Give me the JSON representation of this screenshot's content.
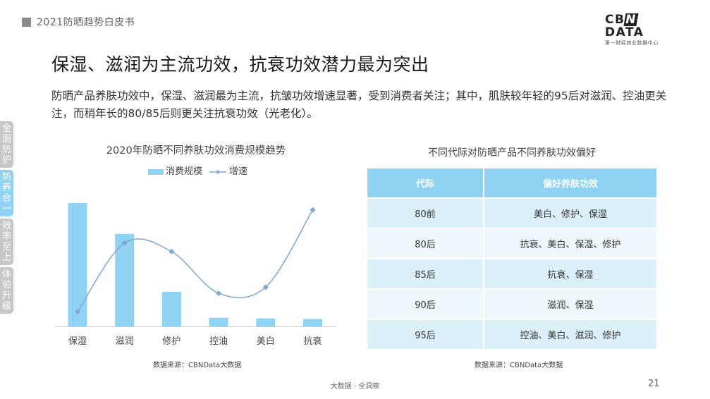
{
  "header": {
    "title": "2021防晒趋势白皮书"
  },
  "logo": {
    "main_left": "CB",
    "main_n": "N",
    "main_right": "DATA",
    "sub": "第一财经商业数据中心"
  },
  "heading": "保湿、滋润为主流功效，抗衰功效潜力最为突出",
  "intro": "防晒产品养肤功效中，保湿、滋润最为主流，抗皱功效增速显著，受到消费者关注；其中，肌肤较年轻的95后对滋润、控油更关注，而稍年长的80/85后则更关注抗衰功效（光老化）。",
  "side_tabs": [
    {
      "label": "全面防护",
      "active": false
    },
    {
      "label": "防养合一",
      "active": true
    },
    {
      "label": "效率至上",
      "active": false
    },
    {
      "label": "体验升级",
      "active": false
    }
  ],
  "chart_data": {
    "type": "bar",
    "title": "2020年防晒不同养肤功效消费规模趋势",
    "categories": [
      "保湿",
      "滋润",
      "修护",
      "控油",
      "美白",
      "抗衰"
    ],
    "series": [
      {
        "name": "消费规模",
        "type": "bar",
        "color": "#8fd2f2",
        "values": [
          100,
          75,
          28,
          7,
          6.5,
          6
        ]
      },
      {
        "name": "增速",
        "type": "line",
        "color": "#7fa8d6",
        "values": [
          12,
          68,
          61,
          27,
          32,
          95
        ]
      }
    ],
    "grid": false,
    "legend": "top-center"
  },
  "chart_source": "数据来源：CBNData大数据",
  "table": {
    "title": "不同代际对防晒产品不同养肤功效偏好",
    "headers": [
      "代际",
      "偏好养肤功效"
    ],
    "rows": [
      [
        "80前",
        "美白、修护、保湿"
      ],
      [
        "80后",
        "抗衰、美白、保湿、修护"
      ],
      [
        "85后",
        "抗衰、保湿"
      ],
      [
        "90后",
        "滋润、保湿"
      ],
      [
        "95后",
        "控油、美白、滋润、修护"
      ]
    ]
  },
  "table_source": "数据来源：CBNData大数据",
  "footer": {
    "center": "大数据 · 全洞察",
    "page": "21"
  }
}
